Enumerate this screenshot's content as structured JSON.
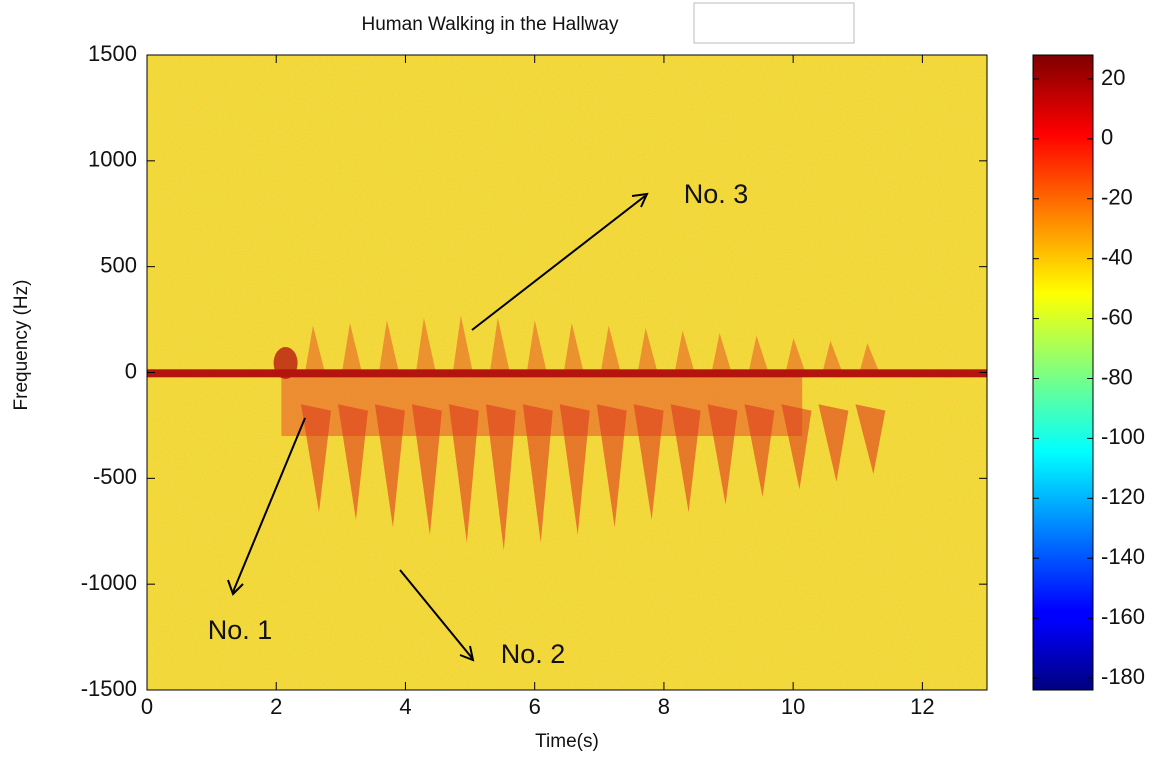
{
  "chart_data": {
    "type": "spectrogram",
    "title": "Human Walking in the Hallway",
    "xlabel": "Time(s)",
    "ylabel": "Frequency (Hz)",
    "xlim": [
      0,
      13
    ],
    "xticks": [
      0,
      2,
      4,
      6,
      8,
      10,
      12
    ],
    "ylim": [
      -1500,
      1500
    ],
    "yticks": [
      -1500,
      -1000,
      -500,
      0,
      500,
      1000,
      1500
    ],
    "colormap": "jet",
    "colorbar": {
      "clim": [
        -184,
        28
      ],
      "ticks": [
        20,
        0,
        -20,
        -40,
        -60,
        -80,
        -100,
        -120,
        -140,
        -160,
        -180
      ]
    },
    "annotations": [
      "No. 1",
      "No. 2",
      "No. 3"
    ]
  }
}
